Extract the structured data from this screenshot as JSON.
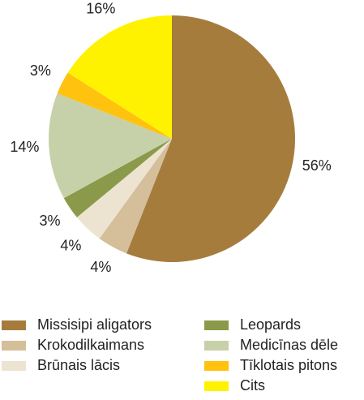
{
  "chart_data": {
    "type": "pie",
    "categories": [
      "Missisipi aligators",
      "Krokodilkaimans",
      "Brūnais lācis",
      "Leopards",
      "Medicīnas dēle",
      "Tīklotais pitons",
      "Cits"
    ],
    "values": [
      56,
      4,
      4,
      3,
      14,
      3,
      16
    ],
    "value_labels": [
      "56%",
      "4%",
      "4%",
      "3%",
      "14%",
      "3%",
      "16%"
    ],
    "colors": [
      "#a67c3d",
      "#d4bf9a",
      "#ede3d1",
      "#8a9a4a",
      "#c7d1a9",
      "#ffc20e",
      "#fff200"
    ]
  }
}
